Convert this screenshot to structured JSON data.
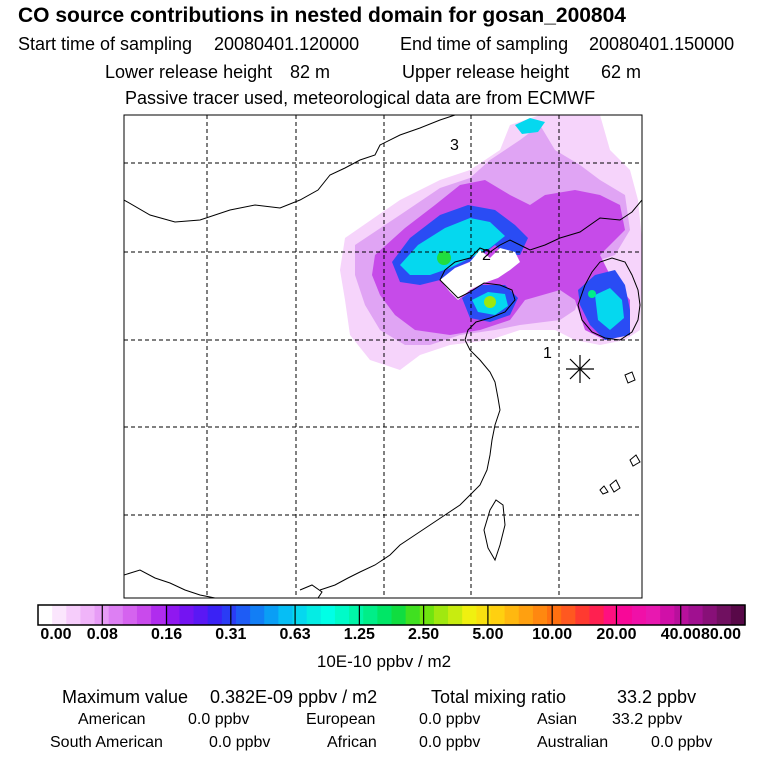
{
  "title": "CO  source contributions in nested domain for gosan_200804",
  "sampling": {
    "start_label": "Start time of sampling",
    "start_value": "20080401.120000",
    "end_label": "End time of sampling",
    "end_value": "20080401.150000"
  },
  "release": {
    "lower_label": "Lower release height",
    "lower_value": "82 m",
    "upper_label": "Upper release height",
    "upper_value": "62 m"
  },
  "tracer_note": "Passive tracer used, meteorological data are from ECMWF",
  "map": {
    "markers": [
      "1",
      "2",
      "3"
    ],
    "receptor_symbol": "star-icon"
  },
  "colorbar": {
    "ticks": [
      "0.00",
      "0.08",
      "0.16",
      "0.31",
      "0.63",
      "1.25",
      "2.50",
      "5.00",
      "10.00",
      "20.00",
      "40.00",
      "80.00"
    ],
    "unit": "10E-10 ppbv / m2",
    "colors": [
      "#ffffff",
      "#fbe6fd",
      "#f6cdfb",
      "#f0b4f9",
      "#e79cf6",
      "#dd7ff3",
      "#d563ef",
      "#c94aec",
      "#b02cee",
      "#9018f0",
      "#7414f2",
      "#5a18f4",
      "#3a22f5",
      "#2a3cf5",
      "#1e5cf5",
      "#127ef5",
      "#0a9ef5",
      "#06bef5",
      "#05d8ef",
      "#05ece4",
      "#00ffe6",
      "#00fbc8",
      "#00f5a8",
      "#00ee88",
      "#00e666",
      "#10dd40",
      "#40e020",
      "#70e410",
      "#a0e810",
      "#c8ec10",
      "#f0f010",
      "#f8e010",
      "#ffd010",
      "#ffb810",
      "#ffa010",
      "#ff8810",
      "#ff7010",
      "#ff5820",
      "#ff3a30",
      "#ff2050",
      "#ff1080",
      "#f80898",
      "#f010a8",
      "#e818b0",
      "#d010a8",
      "#b8109c",
      "#a01090",
      "#881078",
      "#701060",
      "#580848"
    ]
  },
  "summary": {
    "max_label": "Maximum value",
    "max_value": "0.382E-09 ppbv / m2",
    "total_label": "Total mixing ratio",
    "total_value": "33.2 ppbv",
    "regions": [
      {
        "name": "American",
        "value": "0.0 ppbv"
      },
      {
        "name": "European",
        "value": "0.0 ppbv"
      },
      {
        "name": "Asian",
        "value": "33.2 ppbv"
      },
      {
        "name": "South American",
        "value": "0.0 ppbv"
      },
      {
        "name": "African",
        "value": "0.0 ppbv"
      },
      {
        "name": "Australian",
        "value": "0.0 ppbv"
      }
    ]
  }
}
